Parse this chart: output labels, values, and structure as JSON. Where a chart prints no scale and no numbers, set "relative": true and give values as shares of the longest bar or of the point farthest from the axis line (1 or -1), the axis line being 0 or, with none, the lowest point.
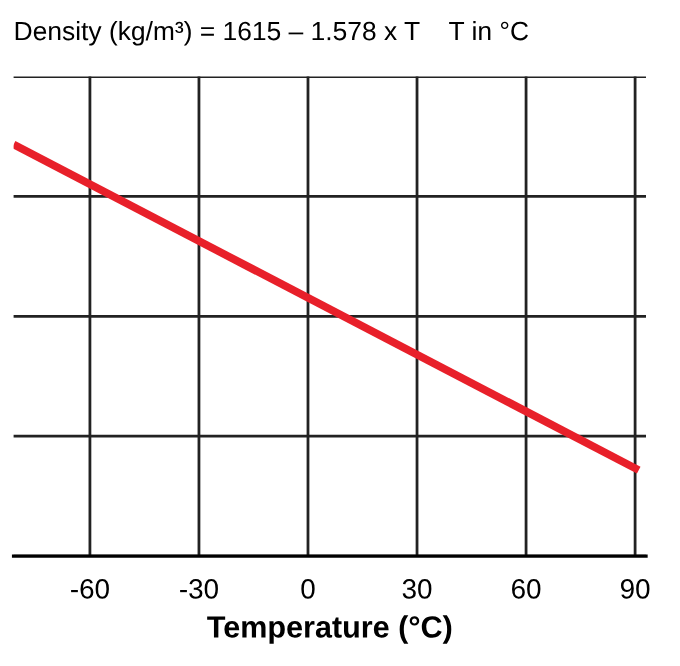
{
  "chart_data": {
    "type": "line",
    "title": "Density (kg/m³) = 1615 – 1.578 x T    T in °C",
    "xlabel": "Temperature (°C)",
    "x": [
      -81,
      91
    ],
    "series": [
      {
        "color": "#e8202a",
        "values": [
          1,
          0.209
        ]
      }
    ],
    "relative": true,
    "xlim": [
      -81,
      93
    ],
    "xticks": [
      -60,
      -30,
      0,
      30,
      60,
      90
    ],
    "grid": true,
    "tick_labels": "x",
    "marker": "none",
    "line_style": "solid"
  }
}
